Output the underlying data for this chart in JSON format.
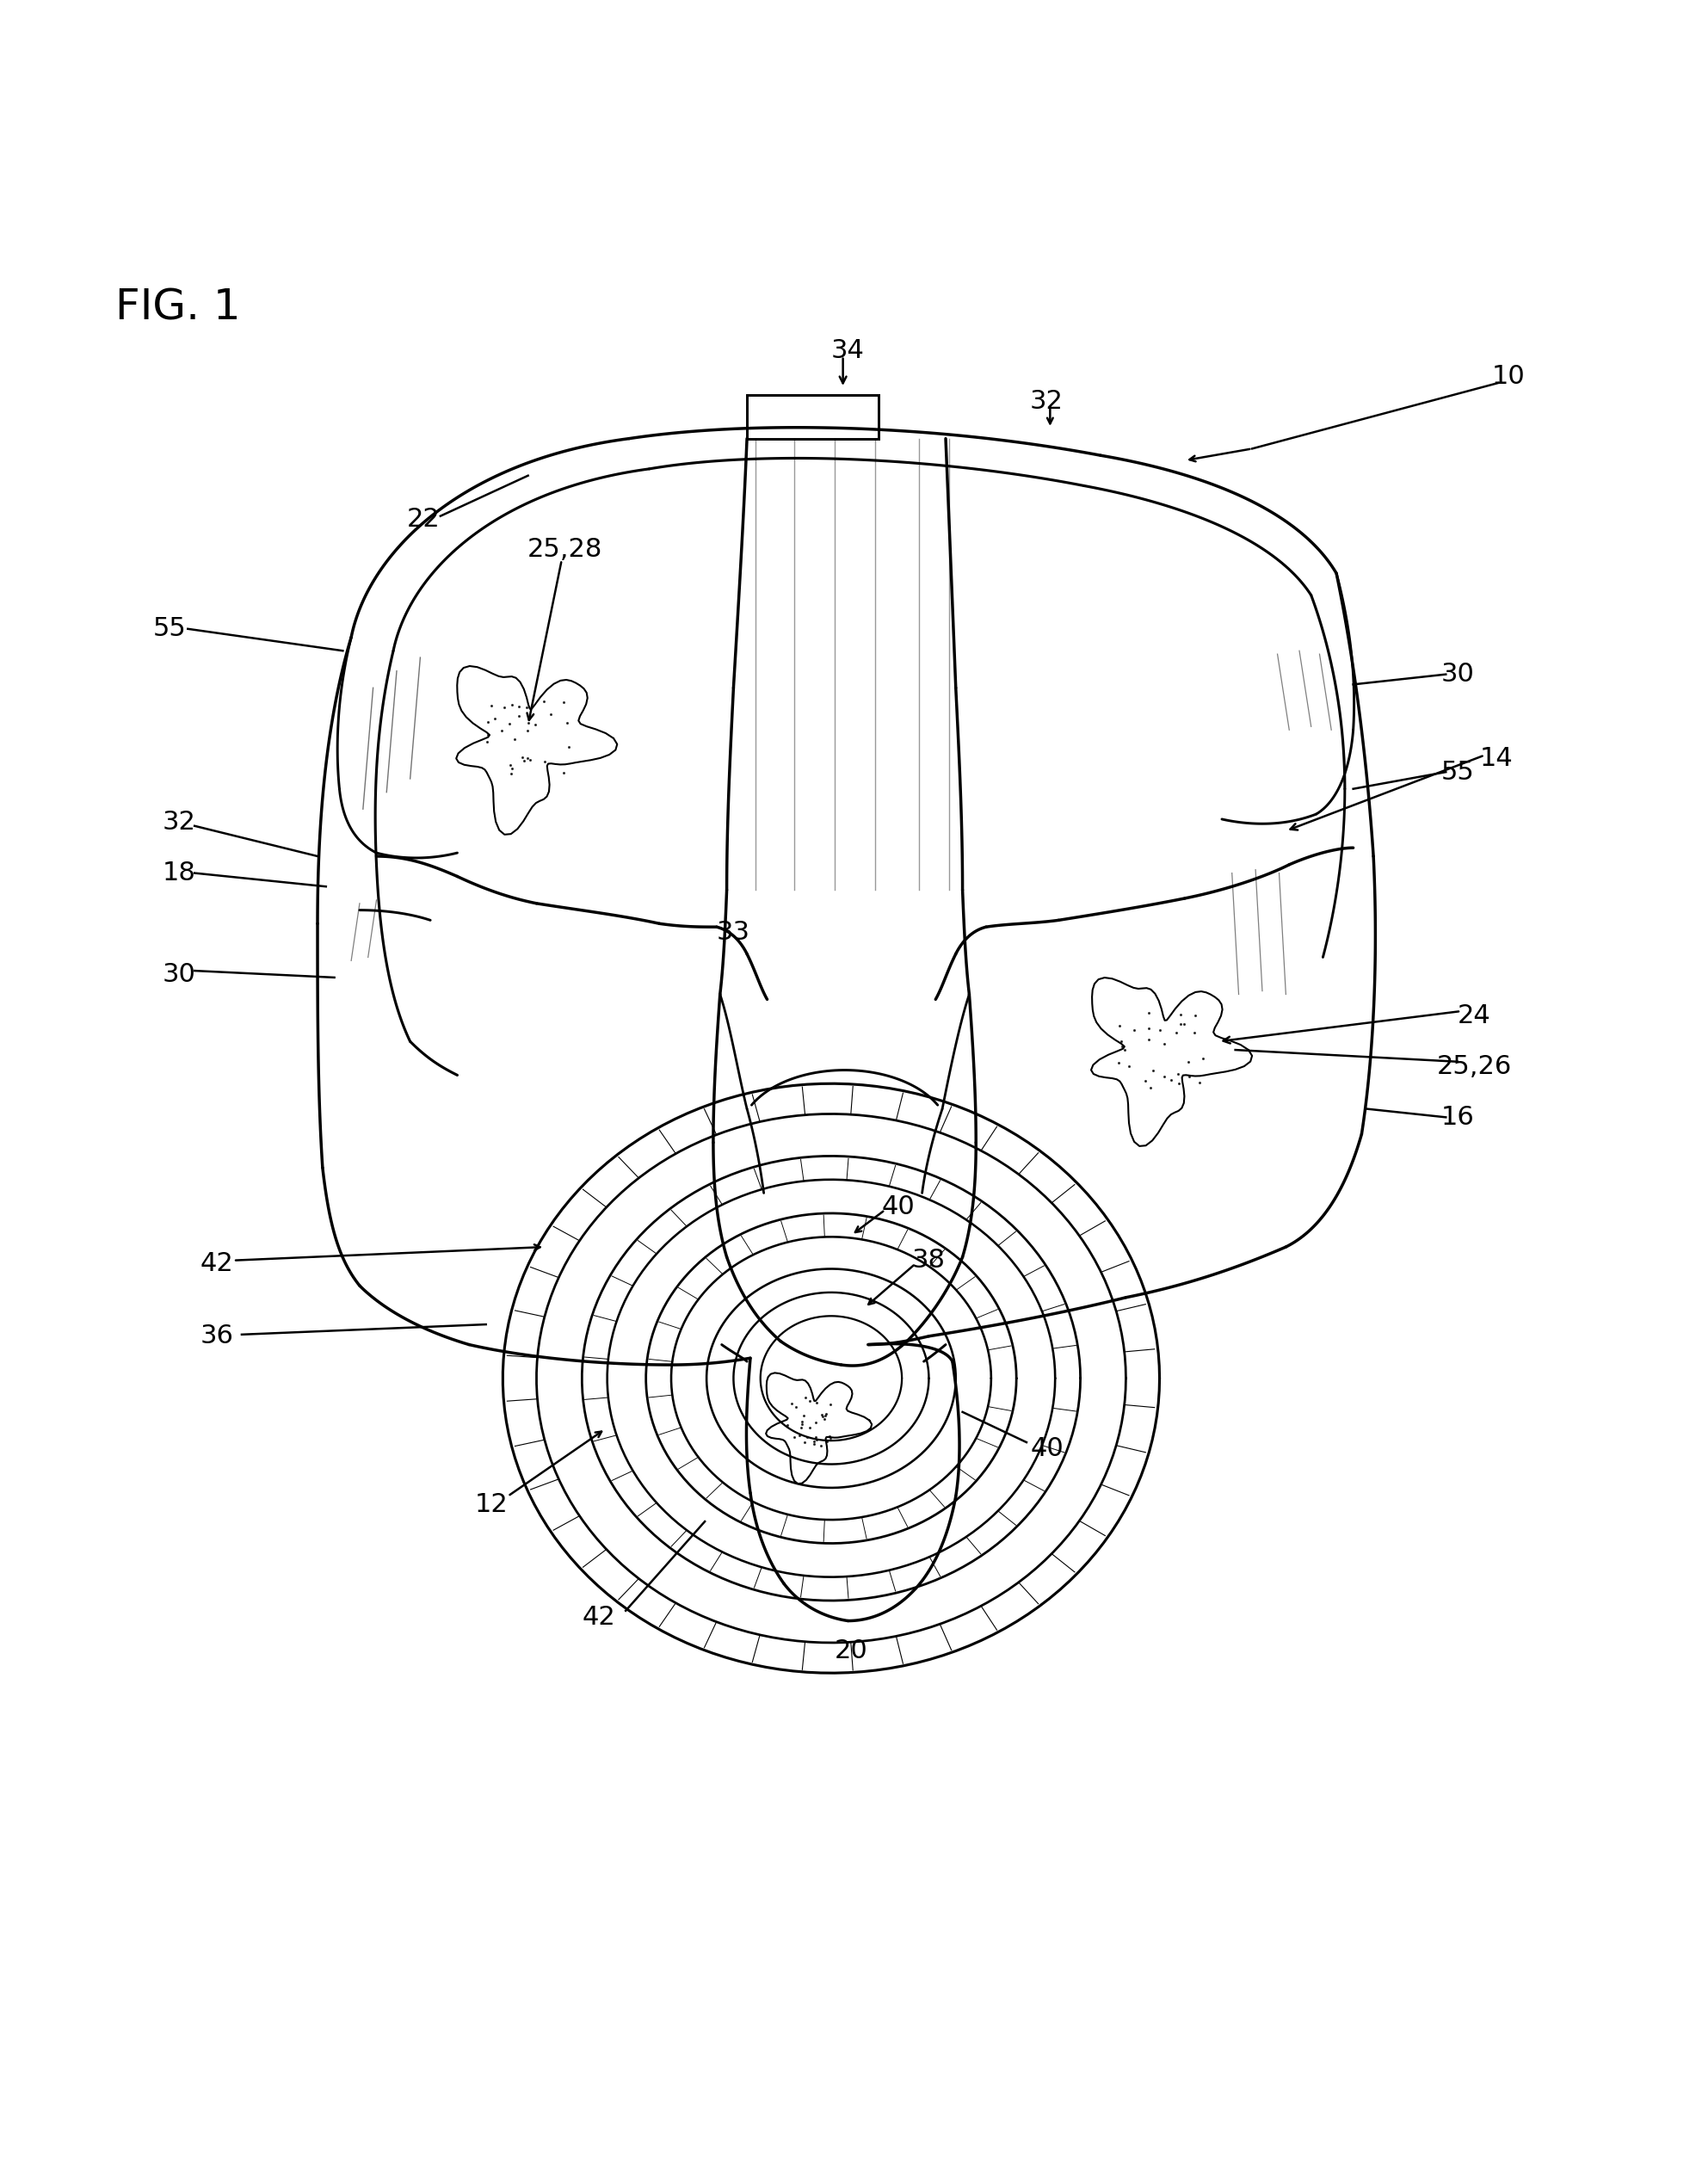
{
  "title": "FIG. 1",
  "background_color": "#ffffff",
  "line_color": "#000000",
  "label_fontsize": 22,
  "title_fontsize": 36
}
